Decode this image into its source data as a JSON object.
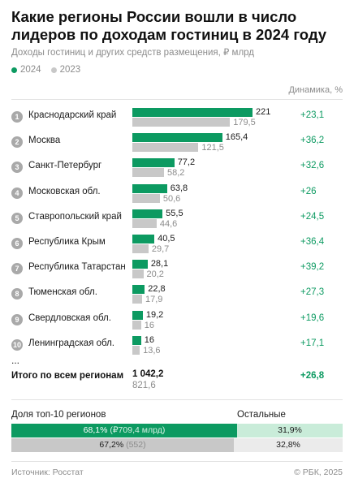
{
  "title": "Какие регионы России вошли в число лидеров по доходам гостиниц в 2024 году",
  "subtitle": "Доходы гостиниц и других средств размещения, ₽ млрд",
  "legend": [
    {
      "label": "2024",
      "color": "#0c9a61"
    },
    {
      "label": "2023",
      "color": "#c8c8c8"
    }
  ],
  "dynamics_header": "Динамика, %",
  "chart_data": {
    "type": "bar",
    "orientation": "horizontal",
    "title": "Какие регионы России вошли в число лидеров по доходам гостиниц в 2024 году",
    "subtitle": "Доходы гостиниц и других средств размещения, ₽ млрд",
    "categories": [
      "Краснодарский край",
      "Москва",
      "Санкт-Петербург",
      "Московская обл.",
      "Ставропольский край",
      "Республика Крым",
      "Республика Татарстан",
      "Тюменская обл.",
      "Свердловская обл.",
      "Ленинградская обл."
    ],
    "series": [
      {
        "name": "2024",
        "color": "#0c9a61",
        "values": [
          221,
          165.4,
          77.2,
          63.8,
          55.5,
          40.5,
          28.1,
          22.8,
          19.2,
          16
        ],
        "labels": [
          "221",
          "165,4",
          "77,2",
          "63,8",
          "55,5",
          "40,5",
          "28,1",
          "22,8",
          "19,2",
          "16"
        ]
      },
      {
        "name": "2023",
        "color": "#c8c8c8",
        "values": [
          179.5,
          121.5,
          58.2,
          50.6,
          44.6,
          29.7,
          20.2,
          17.9,
          16,
          13.6
        ],
        "labels": [
          "179,5",
          "121,5",
          "58,2",
          "50,6",
          "44,6",
          "29,7",
          "20,2",
          "17,9",
          "16",
          "13,6"
        ]
      }
    ],
    "dynamics": [
      "+23,1",
      "+36,2",
      "+32,6",
      "+26",
      "+24,5",
      "+36,4",
      "+39,2",
      "+27,3",
      "+19,6",
      "+17,1"
    ],
    "xlim": [
      0,
      221
    ],
    "legend": "top-left"
  },
  "ellipsis": "...",
  "total": {
    "label": "Итого по всем регионам",
    "value_2024": "1 042,2",
    "value_2023": "821,6",
    "dynamics": "+26,8"
  },
  "share": {
    "left_header": "Доля топ-10 регионов",
    "right_header": "Остальные",
    "bar_2024": {
      "top10_value": 68.1,
      "top10_text": "68,1%",
      "top10_note": "(₽709,4 млрд)",
      "rest_text": "31,9%",
      "top10_color": "#0c9a61",
      "rest_color": "#c9ecd9"
    },
    "bar_2023": {
      "top10_value": 67.2,
      "top10_text": "67,2%",
      "top10_note": "(552)",
      "rest_text": "32,8%",
      "top10_color": "#c8c8c8",
      "rest_color": "#ebebeb"
    }
  },
  "footer": {
    "source": "Источник: Росстат",
    "credit": "© РБК, 2025"
  }
}
